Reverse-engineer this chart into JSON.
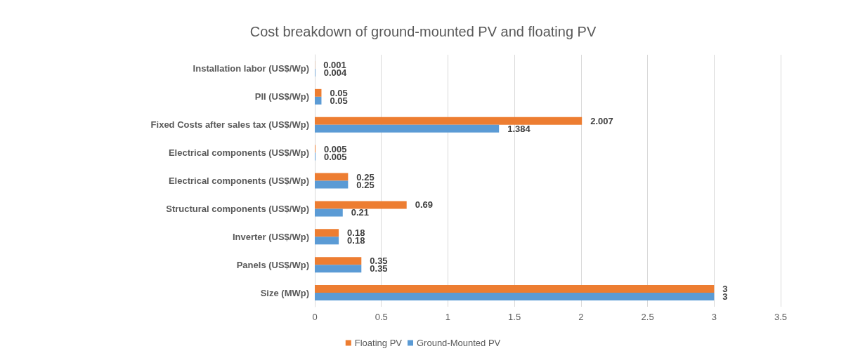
{
  "chart_data": {
    "type": "bar",
    "title": "Cost breakdown of ground-mounted PV and floating PV",
    "orientation": "horizontal",
    "categories": [
      "Installation labor (US$/Wp)",
      "PII (US$/Wp)",
      "Fixed Costs after sales tax (US$/Wp)",
      "Electrical components (US$/Wp)",
      "Electrical components (US$/Wp)",
      "Structural components (US$/Wp)",
      "Inverter (US$/Wp)",
      "Panels (US$/Wp)",
      "Size (MWp)"
    ],
    "series": [
      {
        "name": "Floating PV",
        "color": "#ed7d31",
        "values": [
          0.001,
          0.05,
          2.007,
          0.005,
          0.25,
          0.69,
          0.18,
          0.35,
          3
        ]
      },
      {
        "name": "Ground-Mounted PV",
        "color": "#5b9bd5",
        "values": [
          0.004,
          0.05,
          1.384,
          0.005,
          0.25,
          0.21,
          0.18,
          0.35,
          3
        ]
      }
    ],
    "xlim": [
      0,
      3.5
    ],
    "xticks": [
      0,
      0.5,
      1,
      1.5,
      2,
      2.5,
      3,
      3.5
    ],
    "grid": "x",
    "legend": "bottom",
    "data_labels": true
  }
}
